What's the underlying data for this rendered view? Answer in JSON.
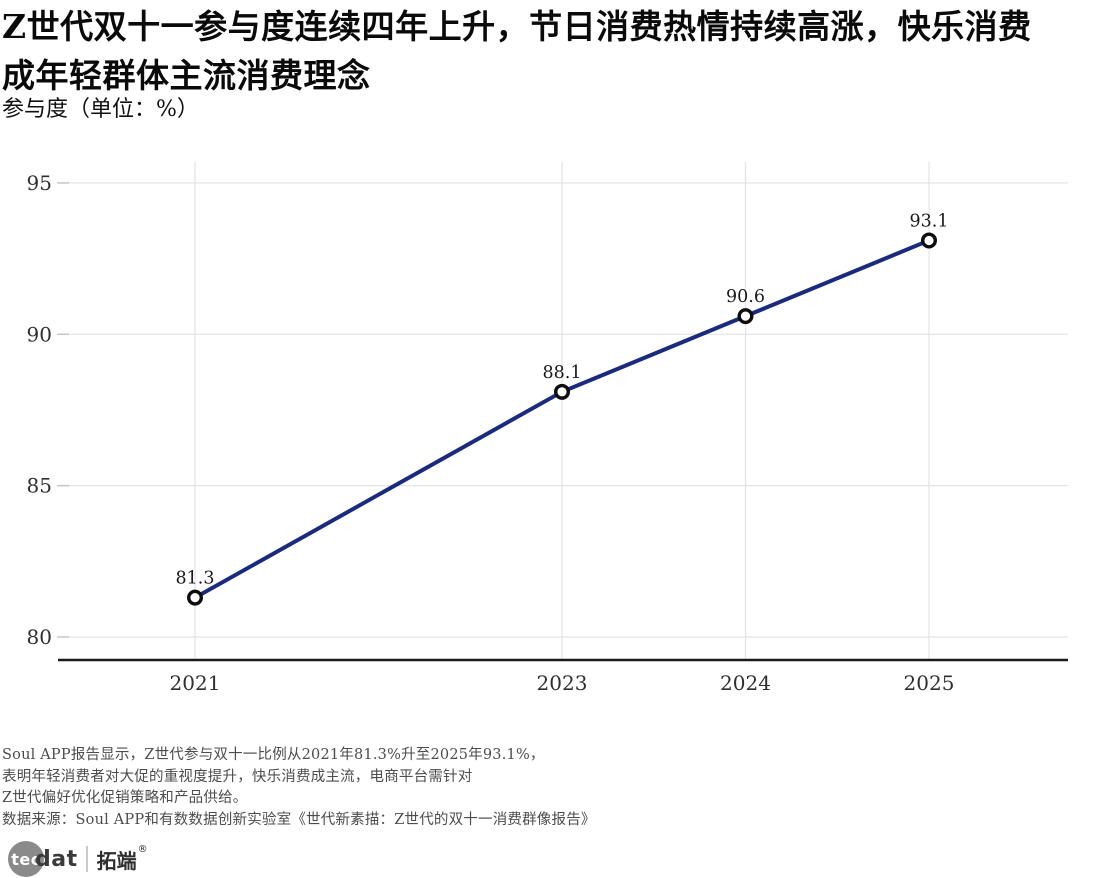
{
  "page": {
    "title": "Z世代双十一参与度连续四年上升，节日消费热情持续高涨，快乐消费成年轻群体主流消费理念",
    "subtitle": "参与度（单位：%）"
  },
  "chart_data": {
    "type": "line",
    "title": "Z世代双十一参与度连续四年上升，节日消费热情持续高涨，快乐消费成年轻群体主流消费理念",
    "ylabel": "参与度（单位：%）",
    "x": [
      2021,
      2023,
      2024,
      2025
    ],
    "x_tick_labels": [
      "2021",
      "2023",
      "2024",
      "2025"
    ],
    "series": [
      {
        "name": "参与度",
        "values": [
          81.3,
          88.1,
          90.6,
          93.1
        ]
      }
    ],
    "point_labels": [
      "81.3",
      "88.1",
      "90.6",
      "93.1"
    ],
    "yticks": [
      80,
      85,
      90,
      95
    ],
    "ytick_labels": [
      "80",
      "85",
      "90",
      "95"
    ],
    "ylim": [
      80,
      95.7
    ],
    "xlim": [
      2020.3,
      2025.8
    ],
    "grid": true,
    "legend": "none",
    "marker": "open-circle",
    "colors": {
      "line": "#1a2a7e",
      "marker": "#0d0d0d",
      "grid": "#e3e3e3",
      "tick": "#c4c4c4",
      "axis": "#1a1a1a",
      "tick_label": "#2f2f2f",
      "point_label": "#191919"
    }
  },
  "footer": {
    "lines": [
      "Soul APP报告显示，Z世代参与双十一比例从2021年81.3%升至2025年93.1%，",
      "表明年轻消费者对大促的重视度提升，快乐消费成主流，电商平台需针对",
      "Z世代偏好优化促销策略和产品供给。",
      "数据来源：Soul APP和有数数据创新实验室《世代新素描：Z世代的双十一消费群像报告》"
    ]
  },
  "logo": {
    "tec": "tec",
    "dat": "dat",
    "cn": "拓端",
    "registered": "®"
  }
}
